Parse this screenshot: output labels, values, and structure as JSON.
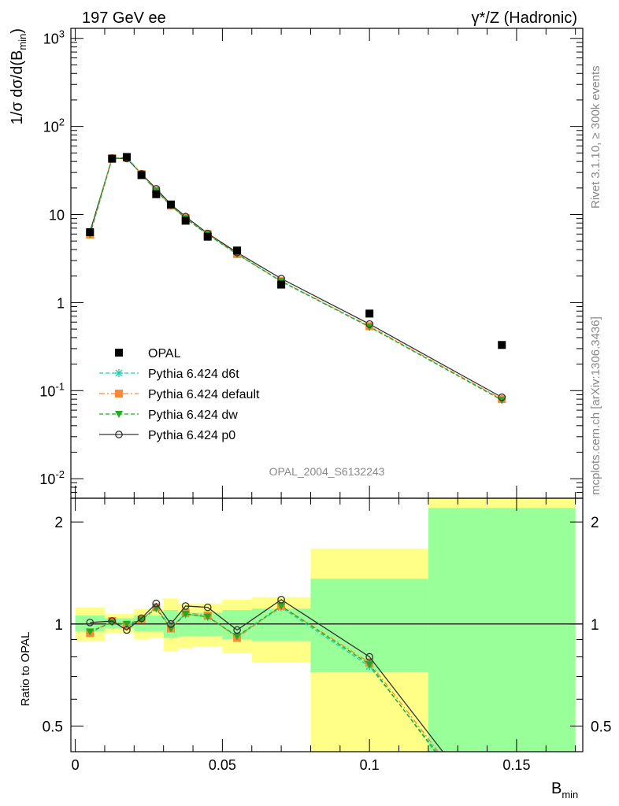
{
  "header": {
    "left_title": "197 GeV ee",
    "right_title": "γ*/Z (Hadronic)"
  },
  "side_text": {
    "rivet": "Rivet 3.1.10, ≥ 300k events",
    "mcplots": "mcplots.cern.ch [arXiv:1306.3436]"
  },
  "analysis_label": "OPAL_2004_S6132243",
  "chart_data": [
    {
      "type": "scatter",
      "panel": "main",
      "ylabel": "1/σ dσ/d(B_min)",
      "yscale": "log",
      "ylim": [
        0.006,
        1300
      ],
      "xlim": [
        -0.0015,
        0.1725
      ],
      "xlabel": "B_min",
      "x_ticks": [
        "0",
        "0.05",
        "0.1",
        "0.15"
      ],
      "y_ticks": [
        "10^-2",
        "10^-1",
        "1",
        "10",
        "10^2",
        "10^3"
      ],
      "legend_position": "lower-left",
      "x": [
        0.005,
        0.0125,
        0.0175,
        0.0225,
        0.0275,
        0.0325,
        0.0375,
        0.045,
        0.055,
        0.07,
        0.1,
        0.145
      ],
      "series": [
        {
          "name": "OPAL",
          "color": "#000000",
          "marker": "square",
          "values": [
            6.3,
            43,
            45,
            28,
            17,
            13,
            8.5,
            5.6,
            3.9,
            1.6,
            0.75,
            0.33
          ]
        },
        {
          "name": "Pythia 6.424 d6t",
          "color": "#22ccaa",
          "marker": "star",
          "line": "dashed",
          "values": [
            5.9,
            43.5,
            44.5,
            28.5,
            18.8,
            12.7,
            9.0,
            5.9,
            3.55,
            1.73,
            0.53,
            0.079
          ]
        },
        {
          "name": "Pythia 6.424 default",
          "color": "#ff8833",
          "marker": "square",
          "line": "dashdot",
          "values": [
            5.9,
            43.5,
            44.0,
            28.8,
            18.7,
            12.6,
            9.1,
            6.0,
            3.55,
            1.75,
            0.54,
            0.08
          ]
        },
        {
          "name": "Pythia 6.424 dw",
          "color": "#22aa22",
          "marker": "triangle-down",
          "line": "dashed",
          "values": [
            5.95,
            43.0,
            44.5,
            28.7,
            18.6,
            12.6,
            9.05,
            5.95,
            3.55,
            1.75,
            0.53,
            0.078
          ]
        },
        {
          "name": "Pythia 6.424 p0",
          "color": "#333333",
          "marker": "circle-open",
          "line": "solid",
          "values": [
            6.35,
            43.5,
            43.2,
            28.9,
            19.6,
            13.0,
            9.45,
            6.1,
            3.7,
            1.87,
            0.57,
            0.084
          ]
        }
      ]
    },
    {
      "type": "line",
      "panel": "ratio",
      "ylabel": "Ratio to OPAL",
      "yscale": "log",
      "ylim": [
        0.42,
        2.35
      ],
      "y_ticks": [
        "0.5",
        "1",
        "2"
      ],
      "xlabel": "B_min",
      "bins": [
        {
          "x_low": 0.0,
          "x_high": 0.01,
          "green": [
            0.95,
            1.06
          ],
          "yellow": [
            0.89,
            1.12
          ]
        },
        {
          "x_low": 0.01,
          "x_high": 0.015,
          "green": [
            0.97,
            1.04
          ],
          "yellow": [
            0.94,
            1.07
          ]
        },
        {
          "x_low": 0.015,
          "x_high": 0.02,
          "green": [
            0.97,
            1.04
          ],
          "yellow": [
            0.94,
            1.07
          ]
        },
        {
          "x_low": 0.02,
          "x_high": 0.025,
          "green": [
            0.95,
            1.06
          ],
          "yellow": [
            0.9,
            1.11
          ]
        },
        {
          "x_low": 0.025,
          "x_high": 0.03,
          "green": [
            0.95,
            1.06
          ],
          "yellow": [
            0.91,
            1.11
          ]
        },
        {
          "x_low": 0.03,
          "x_high": 0.035,
          "green": [
            0.91,
            1.1
          ],
          "yellow": [
            0.83,
            1.19
          ]
        },
        {
          "x_low": 0.035,
          "x_high": 0.04,
          "green": [
            0.92,
            1.08
          ],
          "yellow": [
            0.85,
            1.15
          ]
        },
        {
          "x_low": 0.04,
          "x_high": 0.05,
          "green": [
            0.92,
            1.08
          ],
          "yellow": [
            0.86,
            1.15
          ]
        },
        {
          "x_low": 0.05,
          "x_high": 0.06,
          "green": [
            0.9,
            1.1
          ],
          "yellow": [
            0.82,
            1.18
          ]
        },
        {
          "x_low": 0.06,
          "x_high": 0.08,
          "green": [
            0.89,
            1.11
          ],
          "yellow": [
            0.77,
            1.2
          ]
        },
        {
          "x_low": 0.08,
          "x_high": 0.12,
          "green": [
            0.72,
            1.36
          ],
          "yellow": [
            0.3,
            1.67
          ]
        },
        {
          "x_low": 0.12,
          "x_high": 0.17,
          "green": [
            0.3,
            2.2
          ],
          "yellow": [
            0.3,
            2.35
          ]
        }
      ],
      "x": [
        0.005,
        0.0125,
        0.0175,
        0.0225,
        0.0275,
        0.0325,
        0.0375,
        0.045,
        0.055,
        0.07,
        0.1,
        0.145
      ],
      "series": [
        {
          "name": "Pythia 6.424 d6t",
          "color": "#22ccaa",
          "values": [
            0.94,
            1.02,
            0.99,
            1.03,
            1.12,
            0.98,
            1.07,
            1.05,
            0.92,
            1.12,
            0.75,
            0.24
          ]
        },
        {
          "name": "Pythia 6.424 default",
          "color": "#ff8833",
          "values": [
            0.94,
            1.02,
            0.99,
            1.03,
            1.12,
            0.97,
            1.08,
            1.06,
            0.91,
            1.13,
            0.77,
            0.24
          ]
        },
        {
          "name": "Pythia 6.424 dw",
          "color": "#22aa22",
          "values": [
            0.95,
            1.01,
            1.0,
            1.03,
            1.11,
            0.97,
            1.07,
            1.05,
            0.92,
            1.13,
            0.76,
            0.23
          ]
        },
        {
          "name": "Pythia 6.424 p0",
          "color": "#333333",
          "values": [
            1.01,
            1.02,
            0.96,
            1.04,
            1.15,
            1.0,
            1.13,
            1.12,
            0.96,
            1.18,
            0.8,
            0.25
          ]
        }
      ]
    }
  ]
}
